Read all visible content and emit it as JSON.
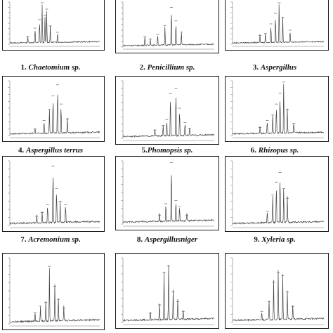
{
  "colors": {
    "trace": "#444444",
    "frame": "#1a1a1a",
    "axis": "#777777",
    "caption": "#111111"
  },
  "chart_data": [
    {
      "type": "line",
      "number": "1.",
      "name": "Chaetomium sp.",
      "peaks": [
        {
          "x": 0.2,
          "y": 0.15
        },
        {
          "x": 0.28,
          "y": 0.35
        },
        {
          "x": 0.33,
          "y": 0.55
        },
        {
          "x": 0.36,
          "y": 0.95
        },
        {
          "x": 0.39,
          "y": 0.65
        },
        {
          "x": 0.41,
          "y": 0.8
        },
        {
          "x": 0.45,
          "y": 0.4
        },
        {
          "x": 0.53,
          "y": 0.25
        }
      ]
    },
    {
      "type": "line",
      "number": "2.",
      "name": "Penicillium sp.",
      "peaks": [
        {
          "x": 0.24,
          "y": 0.2
        },
        {
          "x": 0.3,
          "y": 0.15
        },
        {
          "x": 0.38,
          "y": 0.25
        },
        {
          "x": 0.46,
          "y": 0.45
        },
        {
          "x": 0.53,
          "y": 0.85
        },
        {
          "x": 0.58,
          "y": 0.55
        },
        {
          "x": 0.64,
          "y": 0.3
        }
      ]
    },
    {
      "type": "line",
      "number": "3.",
      "name": "Aspergillus",
      "peaks": [
        {
          "x": 0.3,
          "y": 0.18
        },
        {
          "x": 0.36,
          "y": 0.22
        },
        {
          "x": 0.42,
          "y": 0.45
        },
        {
          "x": 0.47,
          "y": 0.7
        },
        {
          "x": 0.51,
          "y": 0.95
        },
        {
          "x": 0.55,
          "y": 0.6
        },
        {
          "x": 0.63,
          "y": 0.3
        }
      ]
    },
    {
      "type": "line",
      "number": "4.",
      "name": "Aspergillus terrus",
      "peaks": [
        {
          "x": 0.28,
          "y": 0.1
        },
        {
          "x": 0.38,
          "y": 0.25
        },
        {
          "x": 0.44,
          "y": 0.45
        },
        {
          "x": 0.48,
          "y": 0.7
        },
        {
          "x": 0.53,
          "y": 0.9
        },
        {
          "x": 0.57,
          "y": 0.55
        },
        {
          "x": 0.64,
          "y": 0.28
        }
      ]
    },
    {
      "type": "line",
      "number": "5.",
      "name": "Phomopsis sp.",
      "peaks": [
        {
          "x": 0.35,
          "y": 0.12
        },
        {
          "x": 0.44,
          "y": 0.2
        },
        {
          "x": 0.48,
          "y": 0.3
        },
        {
          "x": 0.52,
          "y": 0.75
        },
        {
          "x": 0.58,
          "y": 0.85
        },
        {
          "x": 0.62,
          "y": 0.5
        },
        {
          "x": 0.68,
          "y": 0.25
        },
        {
          "x": 0.73,
          "y": 0.15
        }
      ]
    },
    {
      "type": "line",
      "number": "6.",
      "name": "Rhizopus sp.",
      "peaks": [
        {
          "x": 0.3,
          "y": 0.12
        },
        {
          "x": 0.38,
          "y": 0.25
        },
        {
          "x": 0.44,
          "y": 0.35
        },
        {
          "x": 0.48,
          "y": 0.55
        },
        {
          "x": 0.52,
          "y": 0.75
        },
        {
          "x": 0.56,
          "y": 0.95
        },
        {
          "x": 0.6,
          "y": 0.45
        },
        {
          "x": 0.67,
          "y": 0.2
        }
      ]
    },
    {
      "type": "line",
      "number": "7.",
      "name": "Acremonium sp.",
      "peaks": [
        {
          "x": 0.3,
          "y": 0.12
        },
        {
          "x": 0.36,
          "y": 0.18
        },
        {
          "x": 0.42,
          "y": 0.3
        },
        {
          "x": 0.48,
          "y": 0.9
        },
        {
          "x": 0.52,
          "y": 0.55
        },
        {
          "x": 0.56,
          "y": 0.35
        },
        {
          "x": 0.62,
          "y": 0.3
        }
      ]
    },
    {
      "type": "line",
      "number": "8.",
      "name": "Aspergillusniger",
      "peaks": [
        {
          "x": 0.4,
          "y": 0.12
        },
        {
          "x": 0.47,
          "y": 0.3
        },
        {
          "x": 0.53,
          "y": 0.95
        },
        {
          "x": 0.58,
          "y": 0.35
        },
        {
          "x": 0.62,
          "y": 0.25
        },
        {
          "x": 0.7,
          "y": 0.12
        }
      ]
    },
    {
      "type": "line",
      "number": "9.",
      "name": "Xyleria sp.",
      "peaks": [
        {
          "x": 0.38,
          "y": 0.2
        },
        {
          "x": 0.44,
          "y": 0.45
        },
        {
          "x": 0.48,
          "y": 0.65
        },
        {
          "x": 0.52,
          "y": 0.8
        },
        {
          "x": 0.56,
          "y": 0.55
        },
        {
          "x": 0.6,
          "y": 0.4
        }
      ]
    },
    {
      "type": "line",
      "number": "",
      "name": "",
      "peaks": [
        {
          "x": 0.28,
          "y": 0.15
        },
        {
          "x": 0.34,
          "y": 0.25
        },
        {
          "x": 0.4,
          "y": 0.3
        },
        {
          "x": 0.44,
          "y": 0.85
        },
        {
          "x": 0.5,
          "y": 0.55
        },
        {
          "x": 0.54,
          "y": 0.35
        },
        {
          "x": 0.6,
          "y": 0.22
        }
      ]
    },
    {
      "type": "line",
      "number": "",
      "name": "",
      "peaks": [
        {
          "x": 0.3,
          "y": 0.12
        },
        {
          "x": 0.4,
          "y": 0.25
        },
        {
          "x": 0.45,
          "y": 0.75
        },
        {
          "x": 0.5,
          "y": 0.85
        },
        {
          "x": 0.55,
          "y": 0.45
        },
        {
          "x": 0.6,
          "y": 0.3
        },
        {
          "x": 0.66,
          "y": 0.15
        }
      ]
    },
    {
      "type": "line",
      "number": "",
      "name": "",
      "peaks": [
        {
          "x": 0.32,
          "y": 0.15
        },
        {
          "x": 0.4,
          "y": 0.3
        },
        {
          "x": 0.45,
          "y": 0.6
        },
        {
          "x": 0.5,
          "y": 0.75
        },
        {
          "x": 0.55,
          "y": 0.7
        },
        {
          "x": 0.6,
          "y": 0.45
        },
        {
          "x": 0.66,
          "y": 0.22
        }
      ]
    }
  ]
}
